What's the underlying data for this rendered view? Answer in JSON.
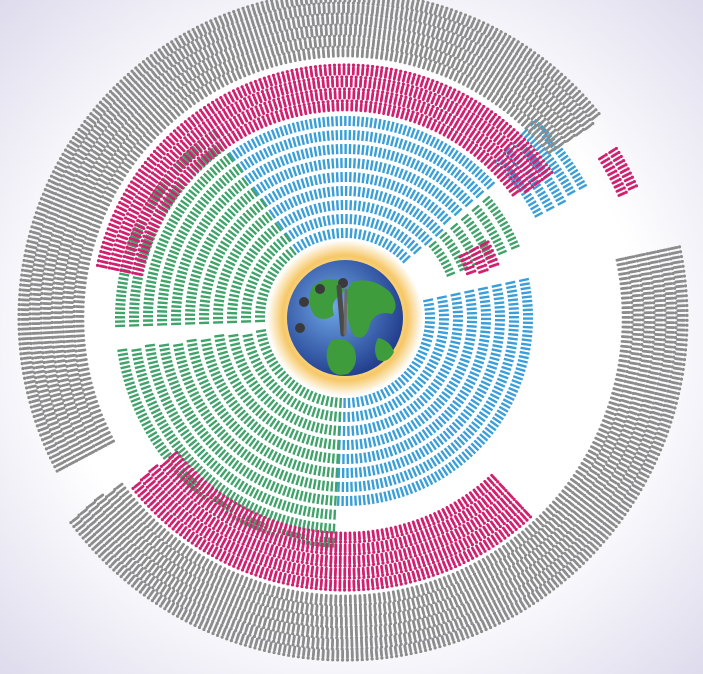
{
  "colors": {
    "background_center": "#ffffff",
    "background_edge": "#d9d6ea",
    "blue": "#3a9fd8",
    "green": "#3fa36a",
    "magenta": "#d0206f",
    "gray": "#8c8c8c",
    "glow": "#f6c766",
    "ocean": "#2c4aa0",
    "land": "#3e9c3c",
    "clock_hand": "#4a4a4a"
  },
  "icons": {
    "bars": "bar-glyph",
    "people": "person-icon",
    "center": "globe-clock-icon"
  },
  "rings": [
    {
      "color": "blue",
      "icon": "bar-glyph"
    },
    {
      "color": "green",
      "icon": "bar-glyph"
    },
    {
      "color": "magenta",
      "icon": "person-icon"
    },
    {
      "color": "gray",
      "icon": "person-icon"
    }
  ]
}
